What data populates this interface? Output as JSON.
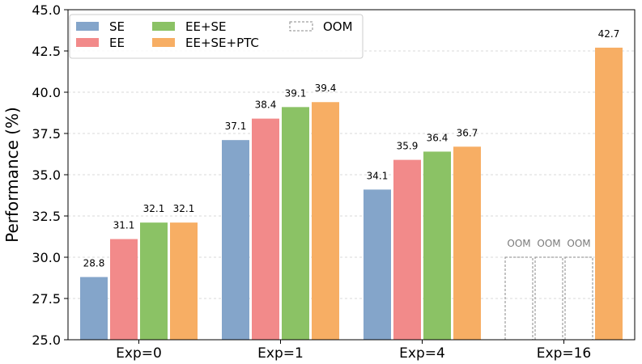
{
  "chart_data": {
    "type": "bar",
    "title": "",
    "xlabel": "",
    "ylabel": "Performance (%)",
    "ylim": [
      25.0,
      45.0
    ],
    "yticks": [
      "25.0",
      "27.5",
      "30.0",
      "32.5",
      "35.0",
      "37.5",
      "40.0",
      "42.5",
      "45.0"
    ],
    "ytick_values": [
      25.0,
      27.5,
      30.0,
      32.5,
      35.0,
      37.5,
      40.0,
      42.5,
      45.0
    ],
    "grid": "horizontal dashed",
    "legend_position": "top-left",
    "categories": [
      "Exp=0",
      "Exp=1",
      "Exp=4",
      "Exp=16"
    ],
    "series": [
      {
        "name": "SE",
        "color": "#84a5ca",
        "values": [
          28.8,
          37.1,
          34.1,
          null
        ],
        "labels": [
          "28.8",
          "37.1",
          "34.1",
          "OOM"
        ]
      },
      {
        "name": "EE",
        "color": "#f28a8a",
        "values": [
          31.1,
          38.4,
          35.9,
          null
        ],
        "labels": [
          "31.1",
          "38.4",
          "35.9",
          "OOM"
        ]
      },
      {
        "name": "EE+SE",
        "color": "#8bc265",
        "values": [
          32.1,
          39.1,
          36.4,
          null
        ],
        "labels": [
          "32.1",
          "39.1",
          "36.4",
          "OOM"
        ]
      },
      {
        "name": "EE+SE+PTC",
        "color": "#f7ae64",
        "values": [
          32.1,
          39.4,
          36.7,
          42.7
        ],
        "labels": [
          "32.1",
          "39.4",
          "36.7",
          "42.7"
        ]
      }
    ],
    "oom": {
      "name": "OOM",
      "value": 30.0,
      "label": "OOM"
    }
  }
}
